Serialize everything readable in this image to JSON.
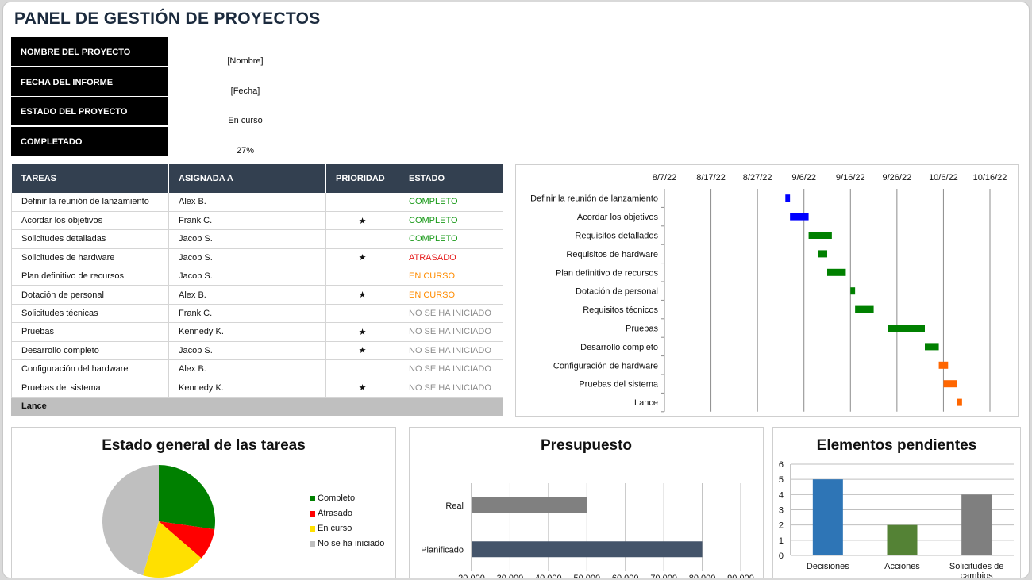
{
  "title": "PANEL DE GESTIÓN DE PROYECTOS",
  "info": [
    {
      "label": "NOMBRE DEL PROYECTO",
      "value": "[Nombre]"
    },
    {
      "label": "FECHA DEL INFORME",
      "value": "[Fecha]"
    },
    {
      "label": "ESTADO DEL PROYECTO",
      "value": "En curso"
    },
    {
      "label": "COMPLETADO",
      "value": "27%"
    }
  ],
  "tasks": {
    "headers": [
      "TAREAS",
      "ASIGNADA A",
      "PRIORIDAD",
      "ESTADO"
    ],
    "rows": [
      {
        "task": "Definir la reunión de lanzamiento",
        "assignee": "Alex B.",
        "priority": "",
        "status": "COMPLETO",
        "status_class": "st-completo"
      },
      {
        "task": "Acordar los objetivos",
        "assignee": "Frank C.",
        "priority": "★",
        "status": "COMPLETO",
        "status_class": "st-completo"
      },
      {
        "task": "Solicitudes detalladas",
        "assignee": "Jacob S.",
        "priority": "",
        "status": "COMPLETO",
        "status_class": "st-completo"
      },
      {
        "task": "Solicitudes de hardware",
        "assignee": "Jacob S.",
        "priority": "★",
        "status": "ATRASADO",
        "status_class": "st-atrasado"
      },
      {
        "task": "Plan definitivo de recursos",
        "assignee": "Jacob S.",
        "priority": "",
        "status": "EN CURSO",
        "status_class": "st-curso"
      },
      {
        "task": "Dotación de personal",
        "assignee": "Alex B.",
        "priority": "★",
        "status": "EN CURSO",
        "status_class": "st-curso"
      },
      {
        "task": "Solicitudes técnicas",
        "assignee": "Frank C.",
        "priority": "",
        "status": "NO SE HA INICIADO",
        "status_class": "st-no"
      },
      {
        "task": "Pruebas",
        "assignee": "Kennedy K.",
        "priority": "★",
        "status": "NO SE HA INICIADO",
        "status_class": "st-no"
      },
      {
        "task": "Desarrollo completo",
        "assignee": "Jacob S.",
        "priority": "★",
        "status": "NO SE HA INICIADO",
        "status_class": "st-no"
      },
      {
        "task": "Configuración del hardware",
        "assignee": "Alex B.",
        "priority": "",
        "status": "NO SE HA INICIADO",
        "status_class": "st-no"
      },
      {
        "task": "Pruebas del sistema",
        "assignee": "Kennedy K.",
        "priority": "★",
        "status": "NO SE HA INICIADO",
        "status_class": "st-no"
      },
      {
        "task": "Lance",
        "assignee": "",
        "priority": "",
        "status": "",
        "status_class": ""
      }
    ]
  },
  "chart_data": [
    {
      "type": "bar",
      "subtype": "gantt",
      "title": "",
      "x_ticks": [
        "8/7/22",
        "8/17/22",
        "8/27/22",
        "9/6/22",
        "9/16/22",
        "9/26/22",
        "10/6/22",
        "10/16/22"
      ],
      "tasks": [
        {
          "name": "Definir la reunión de lanzamiento",
          "start": "9/2/22",
          "end": "9/3/22",
          "color": "#0000ff"
        },
        {
          "name": "Acordar los objetivos",
          "start": "9/3/22",
          "end": "9/7/22",
          "color": "#0000ff"
        },
        {
          "name": "Requisitos detallados",
          "start": "9/7/22",
          "end": "9/12/22",
          "color": "#008000"
        },
        {
          "name": "Requisitos de hardware",
          "start": "9/9/22",
          "end": "9/11/22",
          "color": "#008000"
        },
        {
          "name": "Plan definitivo de recursos",
          "start": "9/11/22",
          "end": "9/15/22",
          "color": "#008000"
        },
        {
          "name": "Dotación de personal",
          "start": "9/16/22",
          "end": "9/17/22",
          "color": "#008000"
        },
        {
          "name": "Requisitos técnicos",
          "start": "9/17/22",
          "end": "9/21/22",
          "color": "#008000"
        },
        {
          "name": "Pruebas",
          "start": "9/24/22",
          "end": "10/2/22",
          "color": "#008000"
        },
        {
          "name": "Desarrollo completo",
          "start": "10/2/22",
          "end": "10/5/22",
          "color": "#008000"
        },
        {
          "name": "Configuración de hardware",
          "start": "10/5/22",
          "end": "10/7/22",
          "color": "#ff6600"
        },
        {
          "name": "Pruebas del sistema",
          "start": "10/6/22",
          "end": "10/9/22",
          "color": "#ff6600"
        },
        {
          "name": "Lance",
          "start": "10/9/22",
          "end": "10/10/22",
          "color": "#ff6600"
        }
      ]
    },
    {
      "type": "pie",
      "title": "Estado  general de las tareas",
      "slices": [
        {
          "name": "Completo",
          "value": 3,
          "color": "#008000"
        },
        {
          "name": "Atrasado",
          "value": 1,
          "color": "#ff0000"
        },
        {
          "name": "En curso",
          "value": 2,
          "color": "#ffe000"
        },
        {
          "name": "No se ha iniciado",
          "value": 5,
          "color": "#bfbfbf"
        }
      ]
    },
    {
      "type": "bar",
      "orientation": "horizontal",
      "title": "Presupuesto",
      "categories": [
        "Real",
        "Planificado"
      ],
      "values": [
        50000,
        80000
      ],
      "colors": [
        "#808080",
        "#44546a"
      ],
      "xlim": [
        20000,
        90000
      ],
      "x_ticks": [
        "20,000",
        "30,000",
        "40,000",
        "50,000",
        "60,000",
        "70,000",
        "80,000",
        "90,000"
      ]
    },
    {
      "type": "bar",
      "title": "Elementos pendientes",
      "categories": [
        "Decisiones",
        "Acciones",
        "Solicitudes de cambios"
      ],
      "category_lines": [
        [
          "Decisiones"
        ],
        [
          "Acciones"
        ],
        [
          "Solicitudes de",
          "cambios"
        ]
      ],
      "values": [
        5,
        2,
        4
      ],
      "colors": [
        "#2e75b6",
        "#548235",
        "#7f7f7f"
      ],
      "ylim": [
        0,
        6
      ],
      "y_ticks": [
        "0",
        "1",
        "2",
        "3",
        "4",
        "5",
        "6"
      ]
    }
  ]
}
